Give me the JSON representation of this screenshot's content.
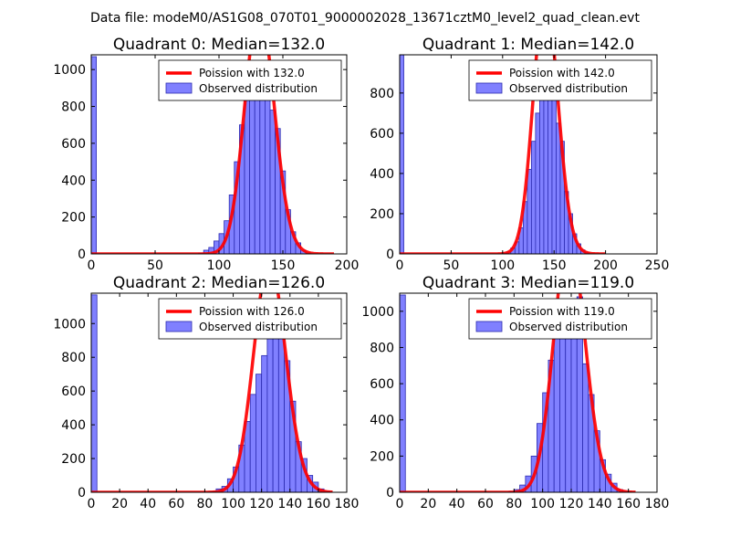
{
  "figure": {
    "suptitle": "Data file: modeM0/AS1G08_070T01_9000002028_13671cztM0_level2_quad_clean.evt"
  },
  "colors": {
    "bar_fill": "#8080ff",
    "bar_edge": "#2a2ab0",
    "poisson_line": "#ff0000",
    "text": "#000000"
  },
  "chart_data": [
    {
      "type": "bar",
      "title": "Quadrant 0: Median=132.0",
      "median": 132,
      "xlim": [
        0,
        200
      ],
      "ylim": [
        0,
        1080
      ],
      "xticks": [
        0,
        50,
        100,
        150,
        200
      ],
      "yticks": [
        0,
        200,
        400,
        600,
        800,
        1000
      ],
      "bin_width": 4,
      "first_bin": {
        "x": 0,
        "value": 1070
      },
      "bins": [
        [
          84,
          5
        ],
        [
          88,
          20
        ],
        [
          92,
          35
        ],
        [
          96,
          70
        ],
        [
          100,
          110
        ],
        [
          104,
          180
        ],
        [
          108,
          320
        ],
        [
          112,
          500
        ],
        [
          116,
          700
        ],
        [
          120,
          880
        ],
        [
          124,
          1000
        ],
        [
          128,
          1010
        ],
        [
          132,
          870
        ],
        [
          136,
          860
        ],
        [
          140,
          780
        ],
        [
          144,
          680
        ],
        [
          148,
          450
        ],
        [
          152,
          240
        ],
        [
          156,
          120
        ],
        [
          160,
          60
        ],
        [
          164,
          20
        ],
        [
          168,
          6
        ]
      ],
      "poisson_total": 9600,
      "curve_x": [
        0,
        190
      ],
      "legend": {
        "line": "Poission with 132.0",
        "bars": "Observed distribution",
        "position": "top-right"
      }
    },
    {
      "type": "bar",
      "title": "Quadrant 1: Median=142.0",
      "median": 142,
      "xlim": [
        0,
        250
      ],
      "ylim": [
        0,
        990
      ],
      "xticks": [
        0,
        50,
        100,
        150,
        200,
        250
      ],
      "yticks": [
        0,
        200,
        400,
        600,
        800
      ],
      "bin_width": 4,
      "first_bin": {
        "x": 0,
        "value": 990
      },
      "bins": [
        [
          100,
          5
        ],
        [
          104,
          10
        ],
        [
          108,
          30
        ],
        [
          112,
          60
        ],
        [
          116,
          130
        ],
        [
          120,
          260
        ],
        [
          124,
          420
        ],
        [
          128,
          560
        ],
        [
          132,
          700
        ],
        [
          136,
          880
        ],
        [
          140,
          830
        ],
        [
          144,
          820
        ],
        [
          148,
          790
        ],
        [
          152,
          650
        ],
        [
          156,
          560
        ],
        [
          160,
          310
        ],
        [
          164,
          200
        ],
        [
          168,
          100
        ],
        [
          172,
          50
        ],
        [
          176,
          20
        ],
        [
          180,
          8
        ]
      ],
      "poisson_total": 9600,
      "curve_x": [
        0,
        200
      ],
      "legend": {
        "line": "Poission with 142.0",
        "bars": "Observed distribution",
        "position": "top-right"
      }
    },
    {
      "type": "bar",
      "title": "Quadrant 2: Median=126.0",
      "median": 126,
      "xlim": [
        0,
        180
      ],
      "ylim": [
        0,
        1180
      ],
      "xticks": [
        0,
        20,
        40,
        60,
        80,
        100,
        120,
        140,
        160,
        180
      ],
      "yticks": [
        0,
        200,
        400,
        600,
        800,
        1000
      ],
      "bin_width": 4,
      "first_bin": {
        "x": 0,
        "value": 1170
      },
      "bins": [
        [
          84,
          5
        ],
        [
          88,
          20
        ],
        [
          92,
          35
        ],
        [
          96,
          80
        ],
        [
          100,
          150
        ],
        [
          104,
          280
        ],
        [
          108,
          420
        ],
        [
          112,
          580
        ],
        [
          116,
          700
        ],
        [
          120,
          810
        ],
        [
          124,
          1060
        ],
        [
          128,
          1020
        ],
        [
          132,
          1000
        ],
        [
          136,
          780
        ],
        [
          140,
          540
        ],
        [
          144,
          300
        ],
        [
          148,
          200
        ],
        [
          152,
          100
        ],
        [
          156,
          60
        ],
        [
          160,
          20
        ],
        [
          164,
          6
        ]
      ],
      "poisson_total": 9600,
      "curve_x": [
        0,
        170
      ],
      "legend": {
        "line": "Poission with 126.0",
        "bars": "Observed distribution",
        "position": "top-right"
      }
    },
    {
      "type": "bar",
      "title": "Quadrant 3: Median=119.0",
      "median": 119,
      "xlim": [
        0,
        180
      ],
      "ylim": [
        0,
        1100
      ],
      "xticks": [
        0,
        20,
        40,
        60,
        80,
        100,
        120,
        140,
        160,
        180
      ],
      "yticks": [
        0,
        200,
        400,
        600,
        800,
        1000
      ],
      "bin_width": 4,
      "first_bin": {
        "x": 0,
        "value": 1090
      },
      "bins": [
        [
          76,
          5
        ],
        [
          80,
          15
        ],
        [
          84,
          40
        ],
        [
          88,
          90
        ],
        [
          92,
          200
        ],
        [
          96,
          380
        ],
        [
          100,
          550
        ],
        [
          104,
          730
        ],
        [
          108,
          960
        ],
        [
          112,
          1000
        ],
        [
          116,
          860
        ],
        [
          120,
          880
        ],
        [
          124,
          1080
        ],
        [
          128,
          710
        ],
        [
          132,
          540
        ],
        [
          136,
          340
        ],
        [
          140,
          180
        ],
        [
          144,
          100
        ],
        [
          148,
          50
        ],
        [
          152,
          15
        ],
        [
          156,
          5
        ]
      ],
      "poisson_total": 9600,
      "curve_x": [
        0,
        165
      ],
      "legend": {
        "line": "Poission with 119.0",
        "bars": "Observed distribution",
        "position": "top-right"
      }
    }
  ]
}
